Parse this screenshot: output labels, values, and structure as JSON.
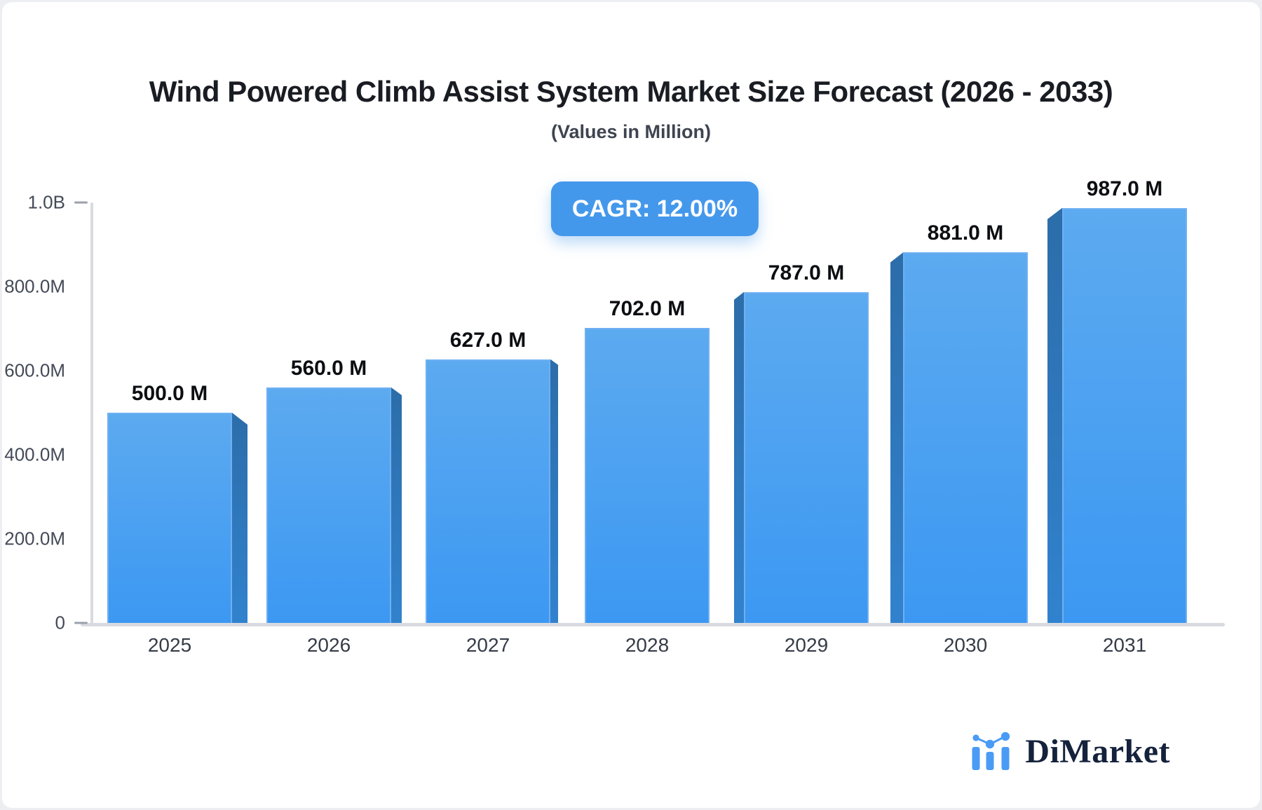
{
  "theme": {
    "page_bg": "#eceef1",
    "card_bg": "#ffffff",
    "title_color": "#191c22",
    "subtitle_color": "#3e4450",
    "badge_bg": "#4498ec",
    "badge_text": "#ffffff",
    "axis_line": "#d8dbe0",
    "tick": "#9aa2ac",
    "y_label_color": "#434a57",
    "x_label_color": "#353c47",
    "value_label_color": "#0c0e12",
    "bar_gradient_top": "#5caaf0",
    "bar_gradient_bottom": "#3c98f2",
    "bar_side": "#2e73b7",
    "bar_edge": "#6fb0f2",
    "logo_text_color": "#15223c",
    "logo_icon_color": "#4a9bf5"
  },
  "chart_data": {
    "type": "bar",
    "title": "Wind Powered Climb Assist System Market Size Forecast (2026 - 2033)",
    "subtitle": "(Values in Million)",
    "annotation": "CAGR: 12.00%",
    "categories": [
      "2025",
      "2026",
      "2027",
      "2028",
      "2029",
      "2030",
      "2031"
    ],
    "values": [
      500,
      560,
      627,
      702,
      787,
      881,
      987
    ],
    "bar_labels": [
      "500.0 M",
      "560.0 M",
      "627.0 M",
      "702.0 M",
      "787.0 M",
      "881.0 M",
      "987.0 M"
    ],
    "ylim": [
      0,
      1000
    ],
    "y_ticks": [
      {
        "label": "1.0B",
        "value": 1000,
        "dash": true
      },
      {
        "label": "800.0M",
        "value": 800,
        "dash": false
      },
      {
        "label": "600.0M",
        "value": 600,
        "dash": false
      },
      {
        "label": "400.0M",
        "value": 400,
        "dash": false
      },
      {
        "label": "200.0M",
        "value": 200,
        "dash": false
      },
      {
        "label": "0",
        "value": 0,
        "dash": true
      }
    ],
    "grid": false,
    "legend": false,
    "bar_style": "3d-extruded-central-perspective"
  },
  "logo": {
    "text": "DiMarket",
    "icon": "bar-chart-logo-icon"
  }
}
